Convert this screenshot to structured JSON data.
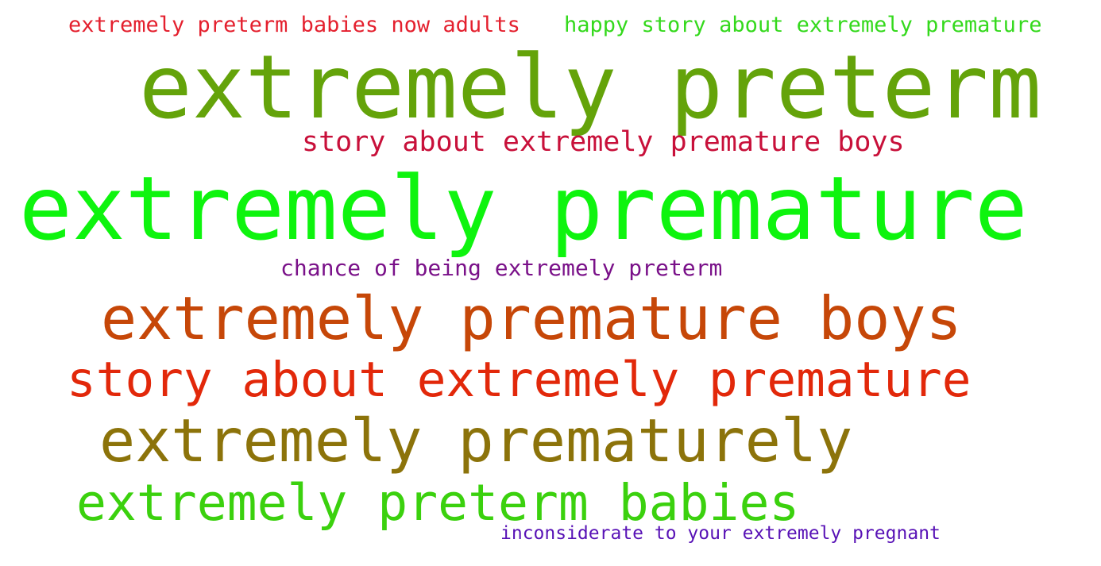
{
  "words": [
    {
      "text": "extremely preterm babies now adults",
      "color": "#e4202e"
    },
    {
      "text": "happy story about extremely premature",
      "color": "#34d91c"
    },
    {
      "text": "extremely preterm",
      "color": "#64a30a"
    },
    {
      "text": "story about extremely premature boys",
      "color": "#c8103a"
    },
    {
      "text": "extremely premature",
      "color": "#0ef40e"
    },
    {
      "text": "chance of being extremely preterm",
      "color": "#7a1189"
    },
    {
      "text": "extremely premature boys",
      "color": "#c64708"
    },
    {
      "text": "story about extremely premature",
      "color": "#e2280a"
    },
    {
      "text": "extremely prematurely",
      "color": "#8c730a"
    },
    {
      "text": "extremely preterm babies",
      "color": "#3bd10e"
    },
    {
      "text": "inconsiderate to your extremely pregnant",
      "color": "#5812b6"
    }
  ]
}
